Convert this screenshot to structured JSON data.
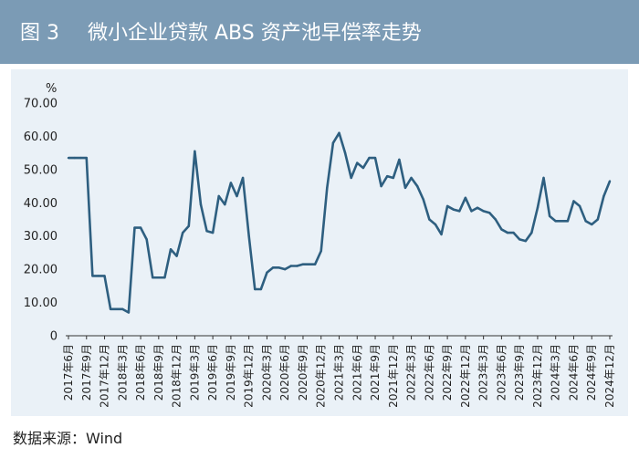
{
  "header": {
    "figure_label": "图 3",
    "title": "微小企业贷款 ABS 资产池早偿率走势"
  },
  "source": "数据来源：Wind",
  "colors": {
    "header_bg": "#7b9bb5",
    "panel_bg": "#eaf1f7",
    "line": "#2e5f80"
  },
  "chart_data": {
    "type": "line",
    "title": "微小企业贷款 ABS 资产池早偿率走势",
    "ylabel": "%",
    "xlabel": "",
    "ylim": [
      0,
      70
    ],
    "yticks": [
      "0",
      "10.00",
      "20.00",
      "30.00",
      "40.00",
      "50.00",
      "60.00",
      "70.00"
    ],
    "xtick_labels": [
      "2017年6月",
      "2017年9月",
      "2017年12月",
      "2018年3月",
      "2018年6月",
      "2018年9月",
      "2018年12月",
      "2019年3月",
      "2019年6月",
      "2019年9月",
      "2019年12月",
      "2020年3月",
      "2020年6月",
      "2020年9月",
      "2020年12月",
      "2021年3月",
      "2021年6月",
      "2021年9月",
      "2021年12月",
      "2022年3月",
      "2022年6月",
      "2022年9月",
      "2022年12月",
      "2023年3月",
      "2023年6月",
      "2023年9月",
      "2023年12月",
      "2024年3月",
      "2024年6月",
      "2024年9月",
      "2024年12月"
    ],
    "grid": false,
    "x": [
      "2017年6月",
      "2017年7月",
      "2017年8月",
      "2017年9月",
      "2017年10月",
      "2017年11月",
      "2017年12月",
      "2018年1月",
      "2018年2月",
      "2018年3月",
      "2018年4月",
      "2018年5月",
      "2018年6月",
      "2018年7月",
      "2018年8月",
      "2018年9月",
      "2018年10月",
      "2018年11月",
      "2018年12月",
      "2019年1月",
      "2019年2月",
      "2019年3月",
      "2019年4月",
      "2019年5月",
      "2019年6月",
      "2019年7月",
      "2019年8月",
      "2019年9月",
      "2019年10月",
      "2019年11月",
      "2019年12月",
      "2020年1月",
      "2020年2月",
      "2020年3月",
      "2020年4月",
      "2020年5月",
      "2020年6月",
      "2020年7月",
      "2020年8月",
      "2020年9月",
      "2020年10月",
      "2020年11月",
      "2020年12月",
      "2021年1月",
      "2021年2月",
      "2021年3月",
      "2021年4月",
      "2021年5月",
      "2021年6月",
      "2021年7月",
      "2021年8月",
      "2021年9月",
      "2021年10月",
      "2021年11月",
      "2021年12月",
      "2022年1月",
      "2022年2月",
      "2022年3月",
      "2022年4月",
      "2022年5月",
      "2022年6月",
      "2022年7月",
      "2022年8月",
      "2022年9月",
      "2022年10月",
      "2022年11月",
      "2022年12月",
      "2023年1月",
      "2023年2月",
      "2023年3月",
      "2023年4月",
      "2023年5月",
      "2023年6月",
      "2023年7月",
      "2023年8月",
      "2023年9月",
      "2023年10月",
      "2023年11月",
      "2023年12月",
      "2024年1月",
      "2024年2月",
      "2024年3月",
      "2024年4月",
      "2024年5月",
      "2024年6月",
      "2024年7月",
      "2024年8月",
      "2024年9月",
      "2024年10月",
      "2024年11月",
      "2024年12月"
    ],
    "series": [
      {
        "values": [
          53.5,
          53.5,
          53.5,
          53.5,
          18,
          18,
          18,
          8,
          8,
          8,
          7,
          32.5,
          32.5,
          29,
          17.5,
          17.5,
          17.5,
          26,
          24,
          31,
          33,
          55.5,
          39.5,
          31.5,
          31,
          42,
          39.5,
          46,
          42,
          47.5,
          30,
          14,
          14,
          19,
          20.5,
          20.5,
          20,
          21,
          21,
          21.5,
          21.5,
          21.5,
          25.5,
          44.5,
          58,
          61,
          55,
          47.5,
          52,
          50.5,
          53.5,
          53.5,
          45,
          48,
          47.5,
          53,
          44.5,
          47.5,
          45,
          41,
          35,
          33.5,
          30.5,
          39,
          38,
          37.5,
          41.5,
          37.5,
          38.5,
          37.5,
          37,
          35,
          32,
          31,
          31,
          29,
          28.5,
          31,
          38.5,
          47.5,
          36,
          34.5,
          34.5,
          34.5,
          40.5,
          39,
          34.5,
          33.5,
          35,
          42,
          46.5
        ]
      }
    ]
  }
}
